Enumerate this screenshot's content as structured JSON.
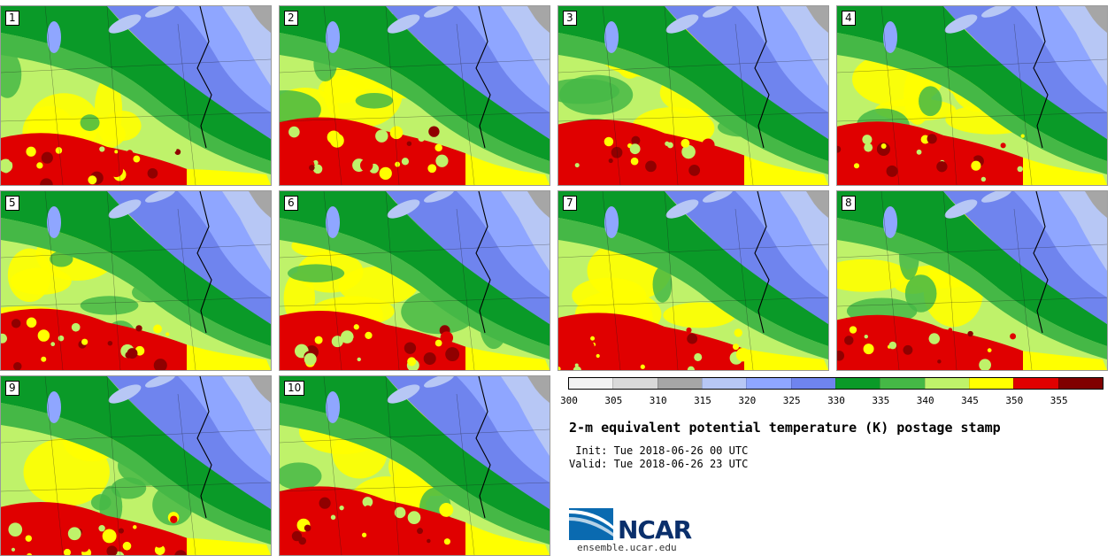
{
  "panels": [
    {
      "label": "1"
    },
    {
      "label": "2"
    },
    {
      "label": "3"
    },
    {
      "label": "4"
    },
    {
      "label": "5"
    },
    {
      "label": "6"
    },
    {
      "label": "7"
    },
    {
      "label": "8"
    },
    {
      "label": "9"
    },
    {
      "label": "10"
    }
  ],
  "colorbar": {
    "ticks": [
      "300",
      "305",
      "310",
      "315",
      "320",
      "325",
      "330",
      "335",
      "340",
      "345",
      "350",
      "355"
    ],
    "colors": [
      "#f2f2f2",
      "#d9d9d9",
      "#a6a6a6",
      "#b7c7f5",
      "#8fa6ff",
      "#6f84ee",
      "#0a9a28",
      "#45b846",
      "#bff26a",
      "#ffff00",
      "#e00000",
      "#800000"
    ]
  },
  "title": "2-m equivalent potential temperature (K) postage stamp",
  "init": " Init: Tue 2018-06-26 00 UTC",
  "valid": "Valid: Tue 2018-06-26 23 UTC",
  "logo": {
    "text": "NCAR",
    "url": "ensemble.ucar.edu"
  }
}
